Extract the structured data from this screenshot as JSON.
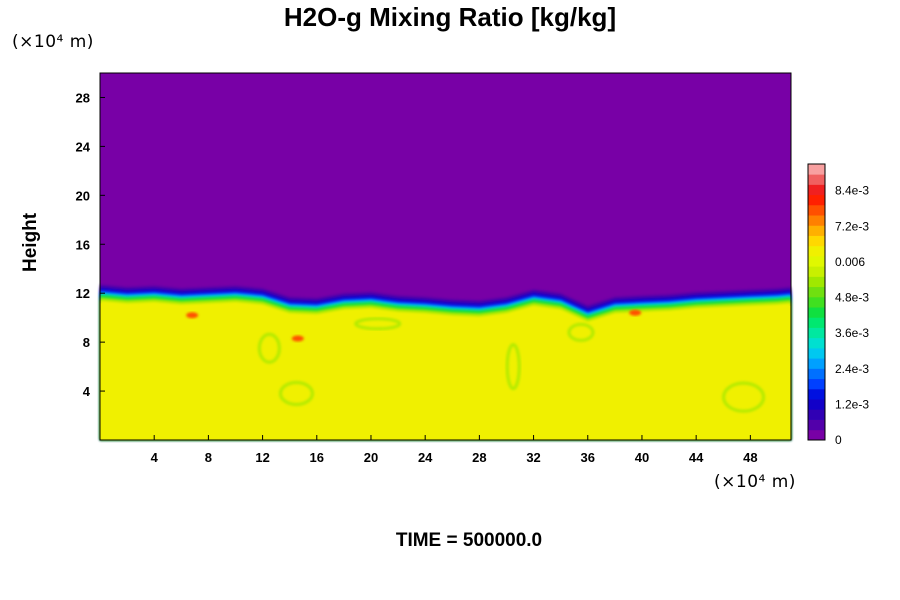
{
  "chart_data": {
    "type": "heatmap",
    "title": "H2O-g Mixing Ratio [kg/kg]",
    "xlabel": "",
    "ylabel": "Height",
    "x_unit": "(×10⁴ m)",
    "y_unit": "(×10⁴ m)",
    "xlim": [
      0,
      51
    ],
    "ylim": [
      0,
      30
    ],
    "x_ticks": [
      4,
      8,
      12,
      16,
      20,
      24,
      28,
      32,
      36,
      40,
      44,
      48
    ],
    "y_ticks": [
      4,
      8,
      12,
      16,
      20,
      24,
      28
    ],
    "background_value": 0,
    "lower_layer_value": 0.0063,
    "interface_profile": {
      "x": [
        0,
        2,
        4,
        6,
        8,
        10,
        12,
        14,
        16,
        18,
        20,
        22,
        24,
        26,
        28,
        30,
        32,
        34,
        36,
        38,
        40,
        42,
        44,
        46,
        48,
        50,
        51
      ],
      "height": [
        11.9,
        11.7,
        11.8,
        11.6,
        11.7,
        11.8,
        11.6,
        10.9,
        10.8,
        11.2,
        11.3,
        11.0,
        10.9,
        10.7,
        10.6,
        10.9,
        11.5,
        11.2,
        10.2,
        10.9,
        11.0,
        11.1,
        11.3,
        11.4,
        11.5,
        11.6,
        11.7
      ]
    },
    "colorbar": {
      "min": 0,
      "max": 0.0093,
      "tick_values": [
        0,
        0.0012,
        0.0024,
        0.0036,
        0.0048,
        0.006,
        0.0072,
        0.0084
      ],
      "tick_labels": [
        "0",
        "1.2e-3",
        "2.4e-3",
        "3.6e-3",
        "4.8e-3",
        "0.006",
        "7.2e-3",
        "8.4e-3"
      ],
      "colors": [
        "#7800a6",
        "#5200aa",
        "#3000b4",
        "#1200c8",
        "#0010e0",
        "#0040ff",
        "#0070ff",
        "#00a0ff",
        "#00c8f0",
        "#00e0d0",
        "#00e8a0",
        "#00e870",
        "#10e040",
        "#40e020",
        "#70e010",
        "#a0e800",
        "#c8f000",
        "#e0f800",
        "#f0f000",
        "#ffd800",
        "#ffb000",
        "#ff8000",
        "#ff5000",
        "#ff2000",
        "#f02020",
        "#f06060",
        "#f8a0a0"
      ]
    },
    "annotation": "TIME = 500000.0"
  }
}
